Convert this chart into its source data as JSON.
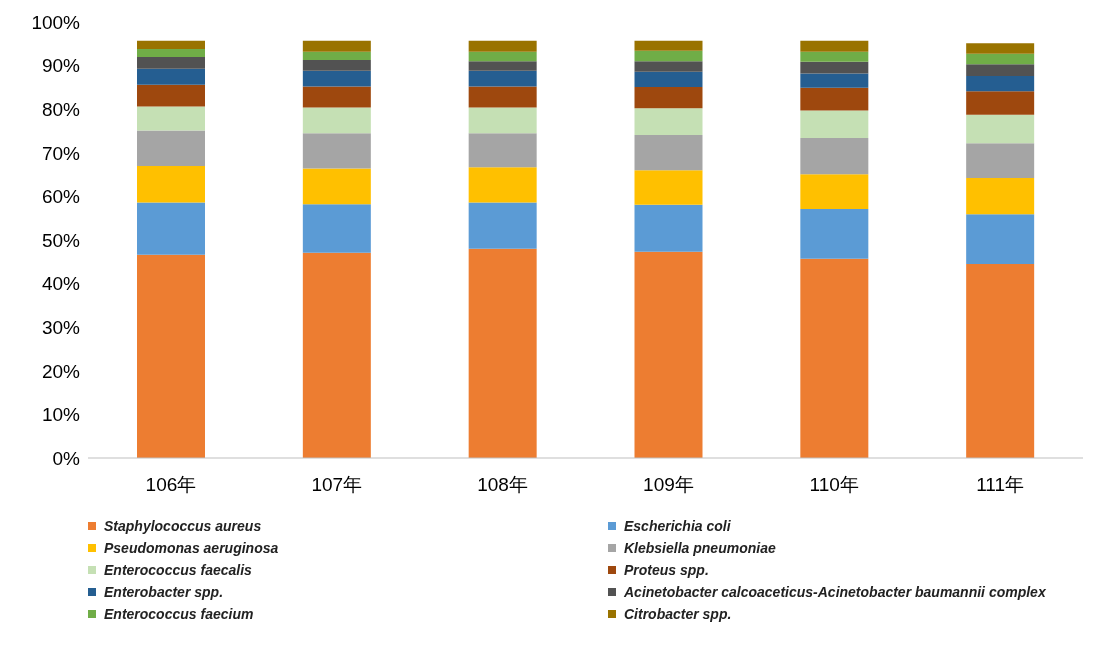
{
  "chart_data": {
    "type": "bar",
    "stacked": true,
    "categories": [
      "106年",
      "107年",
      "108年",
      "109年",
      "110年",
      "111年"
    ],
    "series": [
      {
        "name": "Staphylococcus aureus",
        "color": "#ed7d31",
        "values": [
          46.6,
          47.1,
          48.0,
          47.3,
          45.7,
          44.5
        ]
      },
      {
        "name": "Escherichia coli",
        "color": "#5b9bd5",
        "values": [
          12.0,
          11.1,
          10.6,
          10.8,
          11.4,
          11.4
        ]
      },
      {
        "name": "Pseudomonas aeruginosa",
        "color": "#ffc000",
        "values": [
          8.4,
          8.2,
          8.1,
          7.9,
          8.0,
          8.3
        ]
      },
      {
        "name": "Klebsiella pneumoniae",
        "color": "#a5a5a5",
        "values": [
          8.1,
          8.1,
          7.8,
          8.1,
          8.3,
          8.0
        ]
      },
      {
        "name": "Enterococcus faecalis",
        "color": "#c5e0b4",
        "values": [
          5.5,
          5.9,
          5.9,
          6.1,
          6.3,
          6.5
        ]
      },
      {
        "name": "Proteus spp.",
        "color": "#9e480e",
        "values": [
          5.0,
          4.8,
          4.8,
          4.9,
          5.2,
          5.4
        ]
      },
      {
        "name": "Enterobacter spp.",
        "color": "#255e91",
        "values": [
          3.7,
          3.6,
          3.6,
          3.5,
          3.3,
          3.5
        ]
      },
      {
        "name": "Acinetobacter calcoaceticus-Acinetobacter baumannii complex",
        "color": "#525252",
        "values": [
          2.7,
          2.5,
          2.2,
          2.4,
          2.7,
          2.7
        ]
      },
      {
        "name": "Enterococcus faecium",
        "color": "#70ad47",
        "values": [
          1.8,
          1.9,
          2.2,
          2.4,
          2.3,
          2.4
        ]
      },
      {
        "name": "Citrobacter spp.",
        "color": "#997300",
        "values": [
          1.9,
          2.5,
          2.5,
          2.3,
          2.5,
          2.4
        ]
      }
    ],
    "ylim": [
      0,
      100
    ],
    "yticks": [
      {
        "value": 0,
        "label": "0%"
      },
      {
        "value": 10,
        "label": "10%"
      },
      {
        "value": 20,
        "label": "20%"
      },
      {
        "value": 30,
        "label": "30%"
      },
      {
        "value": 40,
        "label": "40%"
      },
      {
        "value": 50,
        "label": "50%"
      },
      {
        "value": 60,
        "label": "60%"
      },
      {
        "value": 70,
        "label": "70%"
      },
      {
        "value": 80,
        "label": "80%"
      },
      {
        "value": 90,
        "label": "90%"
      },
      {
        "value": 100,
        "label": "100%"
      }
    ],
    "grid": false,
    "legend": "bottom"
  }
}
